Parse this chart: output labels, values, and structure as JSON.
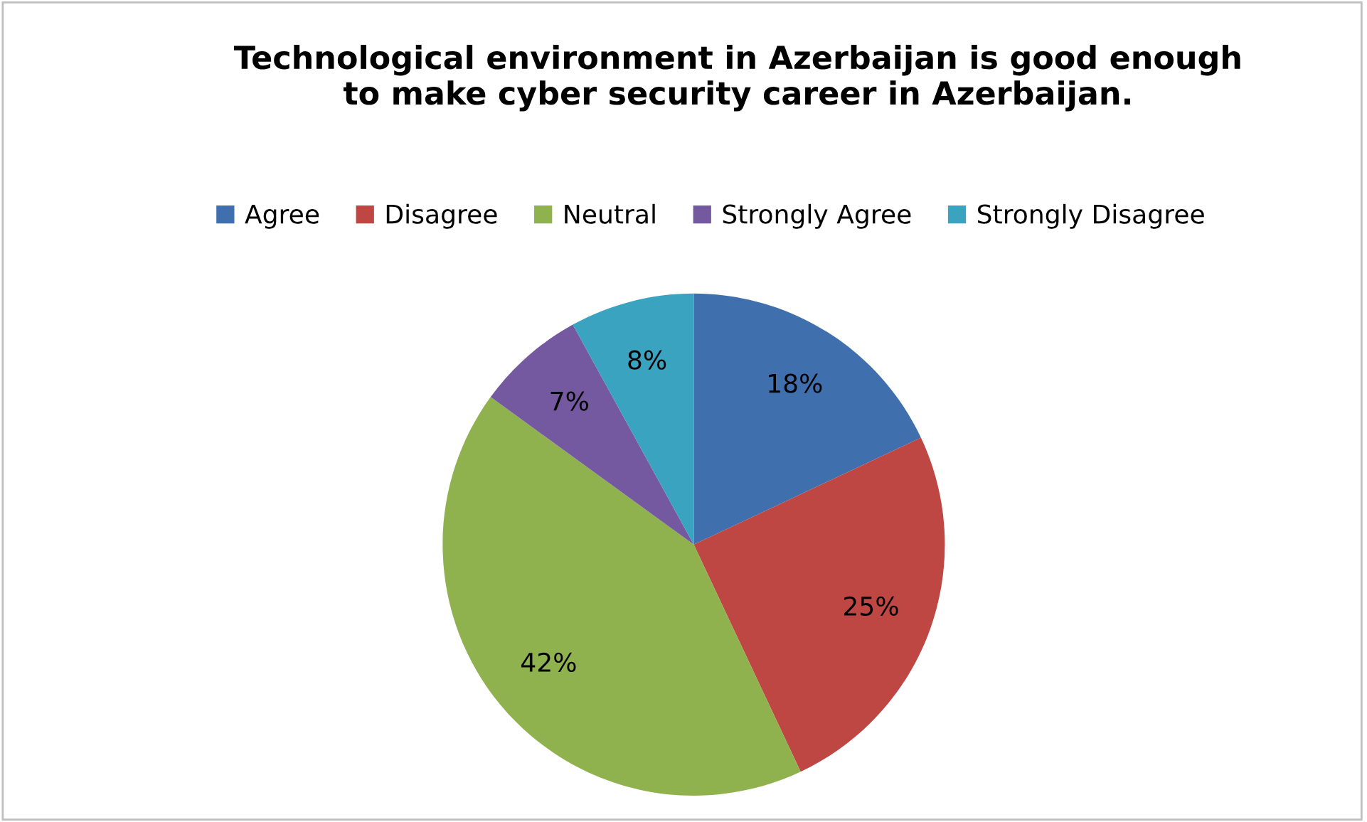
{
  "chart_data": {
    "type": "pie",
    "title": "Technological environment in Azerbaijan is good enough\nto make cyber security career in Azerbaijan.",
    "categories": [
      "Agree",
      "Disagree",
      "Neutral",
      "Strongly Agree",
      "Strongly Disagree"
    ],
    "values": [
      18,
      25,
      42,
      7,
      8
    ],
    "colors": [
      "#3f6fad",
      "#be4643",
      "#8fb24e",
      "#7458a0",
      "#3aa3c0"
    ],
    "value_labels": [
      "18%",
      "25%",
      "42%",
      "7%",
      "8%"
    ],
    "legend": "top"
  }
}
